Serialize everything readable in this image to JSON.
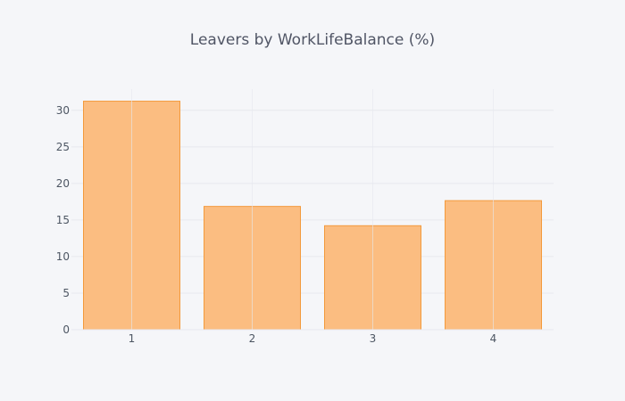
{
  "chart_data": {
    "type": "bar",
    "title": "Leavers by WorkLifeBalance (%)",
    "xlabel": "",
    "ylabel": "",
    "categories": [
      "1",
      "2",
      "3",
      "4"
    ],
    "values": [
      31.25,
      16.86,
      14.22,
      17.65
    ],
    "ylim": [
      0,
      32.9
    ],
    "yticks": [
      0,
      5,
      10,
      15,
      20,
      25,
      30
    ],
    "grid": true,
    "legend": "none",
    "colors": {
      "bar_fill": "#fbbd81",
      "bar_stroke": "#f39a3c",
      "grid": "#e6e8ee",
      "background": "#f5f6f9",
      "title": "#505565",
      "tick_label": "#4d5663"
    }
  }
}
